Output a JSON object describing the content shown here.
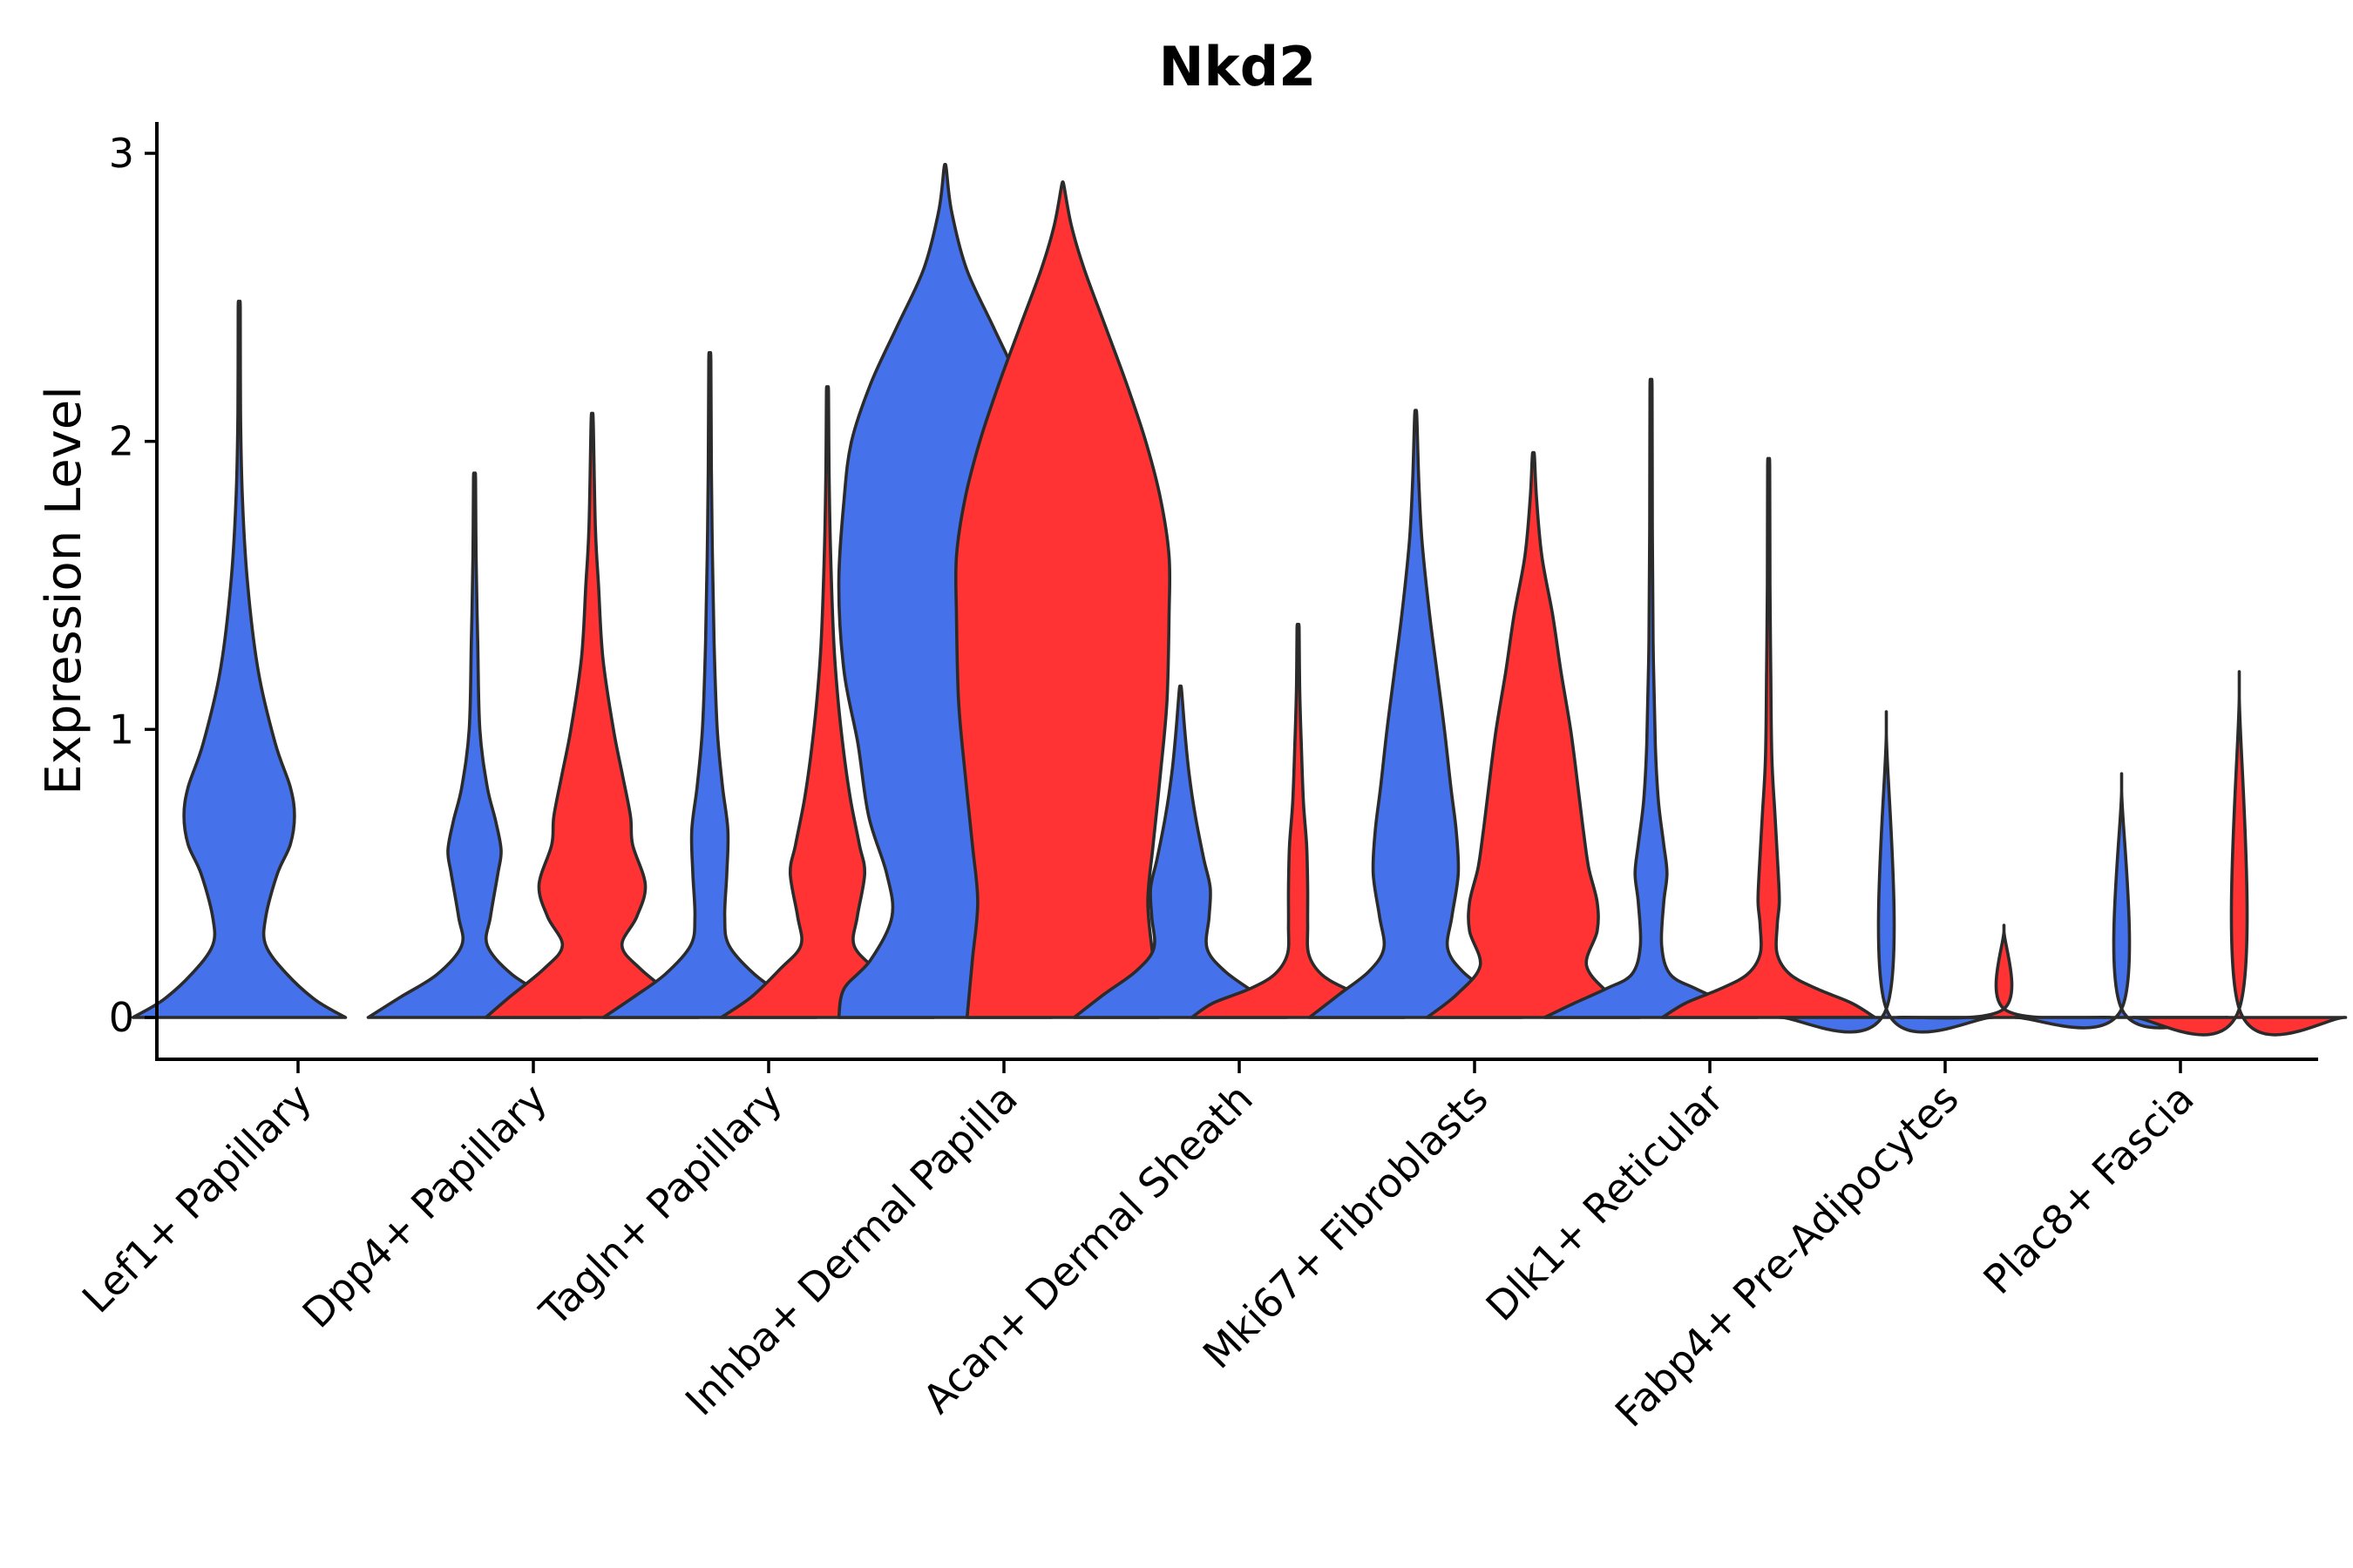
{
  "chart_data": {
    "type": "violin",
    "title": "Nkd2",
    "xlabel": "",
    "ylabel": "Expression Level",
    "ylim": [
      -0.15,
      3.1
    ],
    "yticks": [
      0,
      1,
      2,
      3
    ],
    "categories": [
      "Lef1+ Papillary",
      "Dpp4+ Papillary",
      "Tagln+ Papillary",
      "Inhba+ Dermal Papilla",
      "Acan+ Dermal Sheath",
      "Mki67+ Fibroblasts",
      "Dlk1+ Reticular",
      "Fabp4+ Pre-Adipocytes",
      "Plac8+ Fascia"
    ],
    "colors": {
      "blue": "#4571EA",
      "red": "#FF3333"
    },
    "violins": [
      {
        "category": "Lef1+ Papillary",
        "side": "left",
        "color": "blue",
        "max": 2.46,
        "profile": [
          [
            0,
            1.0
          ],
          [
            0.06,
            0.72
          ],
          [
            0.15,
            0.45
          ],
          [
            0.25,
            0.25
          ],
          [
            0.35,
            0.25
          ],
          [
            0.5,
            0.36
          ],
          [
            0.6,
            0.48
          ],
          [
            0.7,
            0.52
          ],
          [
            0.8,
            0.48
          ],
          [
            0.95,
            0.34
          ],
          [
            1.2,
            0.18
          ],
          [
            1.5,
            0.08
          ],
          [
            1.8,
            0.03
          ],
          [
            2.1,
            0.012
          ],
          [
            2.46,
            0.01
          ]
        ]
      },
      {
        "category": "Dpp4+ Papillary",
        "side": "left",
        "color": "blue",
        "max": 1.87,
        "profile": [
          [
            0,
            1.0
          ],
          [
            0.07,
            0.7
          ],
          [
            0.15,
            0.35
          ],
          [
            0.25,
            0.12
          ],
          [
            0.35,
            0.15
          ],
          [
            0.5,
            0.22
          ],
          [
            0.58,
            0.25
          ],
          [
            0.68,
            0.2
          ],
          [
            0.8,
            0.12
          ],
          [
            1.0,
            0.05
          ],
          [
            1.3,
            0.03
          ],
          [
            1.6,
            0.015
          ],
          [
            1.87,
            0.01
          ]
        ]
      },
      {
        "category": "Dpp4+ Papillary",
        "side": "right",
        "color": "red",
        "max": 2.07,
        "profile": [
          [
            0,
            1.0
          ],
          [
            0.07,
            0.78
          ],
          [
            0.17,
            0.45
          ],
          [
            0.25,
            0.28
          ],
          [
            0.35,
            0.42
          ],
          [
            0.46,
            0.5
          ],
          [
            0.6,
            0.38
          ],
          [
            0.7,
            0.36
          ],
          [
            0.85,
            0.28
          ],
          [
            1.0,
            0.2
          ],
          [
            1.25,
            0.1
          ],
          [
            1.5,
            0.06
          ],
          [
            1.7,
            0.03
          ],
          [
            2.07,
            0.01
          ]
        ]
      },
      {
        "category": "Tagln+ Papillary",
        "side": "left",
        "color": "blue",
        "max": 2.28,
        "profile": [
          [
            0,
            1.0
          ],
          [
            0.07,
            0.72
          ],
          [
            0.15,
            0.42
          ],
          [
            0.25,
            0.18
          ],
          [
            0.35,
            0.14
          ],
          [
            0.5,
            0.16
          ],
          [
            0.65,
            0.17
          ],
          [
            0.8,
            0.12
          ],
          [
            1.0,
            0.07
          ],
          [
            1.3,
            0.04
          ],
          [
            1.6,
            0.025
          ],
          [
            1.9,
            0.015
          ],
          [
            2.28,
            0.01
          ]
        ]
      },
      {
        "category": "Tagln+ Papillary",
        "side": "right",
        "color": "red",
        "max": 2.17,
        "profile": [
          [
            0,
            1.0
          ],
          [
            0.07,
            0.72
          ],
          [
            0.17,
            0.44
          ],
          [
            0.25,
            0.25
          ],
          [
            0.35,
            0.28
          ],
          [
            0.5,
            0.35
          ],
          [
            0.6,
            0.3
          ],
          [
            0.75,
            0.22
          ],
          [
            0.9,
            0.16
          ],
          [
            1.1,
            0.1
          ],
          [
            1.3,
            0.06
          ],
          [
            1.6,
            0.03
          ],
          [
            1.9,
            0.015
          ],
          [
            2.17,
            0.01
          ]
        ]
      },
      {
        "category": "Inhba+ Dermal Papilla",
        "side": "left",
        "color": "blue",
        "max": 2.95,
        "profile": [
          [
            0,
            1.0
          ],
          [
            0.1,
            0.95
          ],
          [
            0.2,
            0.7
          ],
          [
            0.35,
            0.5
          ],
          [
            0.5,
            0.55
          ],
          [
            0.7,
            0.72
          ],
          [
            0.95,
            0.82
          ],
          [
            1.2,
            0.95
          ],
          [
            1.5,
            1.0
          ],
          [
            1.8,
            0.95
          ],
          [
            2.0,
            0.88
          ],
          [
            2.2,
            0.7
          ],
          [
            2.4,
            0.45
          ],
          [
            2.6,
            0.2
          ],
          [
            2.8,
            0.06
          ],
          [
            2.95,
            0.01
          ]
        ]
      },
      {
        "category": "Inhba+ Dermal Papilla",
        "side": "right",
        "color": "red",
        "max": 2.89,
        "profile": [
          [
            0,
            0.9
          ],
          [
            0.2,
            0.85
          ],
          [
            0.4,
            0.8
          ],
          [
            0.6,
            0.85
          ],
          [
            0.85,
            0.92
          ],
          [
            1.1,
            0.98
          ],
          [
            1.4,
            1.0
          ],
          [
            1.6,
            1.0
          ],
          [
            1.8,
            0.92
          ],
          [
            2.0,
            0.78
          ],
          [
            2.2,
            0.6
          ],
          [
            2.4,
            0.4
          ],
          [
            2.6,
            0.2
          ],
          [
            2.75,
            0.08
          ],
          [
            2.89,
            0.01
          ]
        ]
      },
      {
        "category": "Acan+ Dermal Sheath",
        "side": "left",
        "color": "blue",
        "max": 1.14,
        "profile": [
          [
            0,
            1.0
          ],
          [
            0.08,
            0.72
          ],
          [
            0.16,
            0.42
          ],
          [
            0.24,
            0.25
          ],
          [
            0.35,
            0.27
          ],
          [
            0.45,
            0.28
          ],
          [
            0.55,
            0.22
          ],
          [
            0.7,
            0.14
          ],
          [
            0.85,
            0.08
          ],
          [
            1.0,
            0.04
          ],
          [
            1.14,
            0.01
          ]
        ]
      },
      {
        "category": "Acan+ Dermal Sheath",
        "side": "right",
        "color": "red",
        "max": 1.35,
        "profile": [
          [
            0,
            1.0
          ],
          [
            0.05,
            0.8
          ],
          [
            0.1,
            0.45
          ],
          [
            0.15,
            0.22
          ],
          [
            0.22,
            0.1
          ],
          [
            0.32,
            0.09
          ],
          [
            0.45,
            0.09
          ],
          [
            0.6,
            0.08
          ],
          [
            0.75,
            0.05
          ],
          [
            0.95,
            0.03
          ],
          [
            1.15,
            0.015
          ],
          [
            1.35,
            0.01
          ]
        ]
      },
      {
        "category": "Mki67+ Fibroblasts",
        "side": "left",
        "color": "blue",
        "max": 2.09,
        "profile": [
          [
            0,
            1.0
          ],
          [
            0.08,
            0.72
          ],
          [
            0.16,
            0.44
          ],
          [
            0.24,
            0.3
          ],
          [
            0.35,
            0.34
          ],
          [
            0.5,
            0.4
          ],
          [
            0.65,
            0.38
          ],
          [
            0.8,
            0.33
          ],
          [
            1.0,
            0.27
          ],
          [
            1.2,
            0.2
          ],
          [
            1.4,
            0.13
          ],
          [
            1.65,
            0.06
          ],
          [
            1.85,
            0.03
          ],
          [
            2.09,
            0.01
          ]
        ]
      },
      {
        "category": "Mki67+ Fibroblasts",
        "side": "right",
        "color": "red",
        "max": 1.95,
        "profile": [
          [
            0,
            1.0
          ],
          [
            0.08,
            0.72
          ],
          [
            0.18,
            0.5
          ],
          [
            0.3,
            0.6
          ],
          [
            0.4,
            0.6
          ],
          [
            0.52,
            0.52
          ],
          [
            0.65,
            0.47
          ],
          [
            0.8,
            0.42
          ],
          [
            1.0,
            0.35
          ],
          [
            1.2,
            0.26
          ],
          [
            1.4,
            0.18
          ],
          [
            1.6,
            0.08
          ],
          [
            1.8,
            0.03
          ],
          [
            1.95,
            0.01
          ]
        ]
      },
      {
        "category": "Dlk1+ Reticular",
        "side": "left",
        "color": "blue",
        "max": 2.18,
        "profile": [
          [
            0,
            1.0
          ],
          [
            0.05,
            0.72
          ],
          [
            0.1,
            0.42
          ],
          [
            0.15,
            0.18
          ],
          [
            0.25,
            0.1
          ],
          [
            0.4,
            0.12
          ],
          [
            0.5,
            0.15
          ],
          [
            0.6,
            0.12
          ],
          [
            0.75,
            0.07
          ],
          [
            0.95,
            0.04
          ],
          [
            1.3,
            0.02
          ],
          [
            1.7,
            0.012
          ],
          [
            2.18,
            0.01
          ]
        ]
      },
      {
        "category": "Dlk1+ Reticular",
        "side": "right",
        "color": "red",
        "max": 1.91,
        "profile": [
          [
            0,
            1.0
          ],
          [
            0.05,
            0.78
          ],
          [
            0.1,
            0.45
          ],
          [
            0.15,
            0.2
          ],
          [
            0.22,
            0.08
          ],
          [
            0.32,
            0.08
          ],
          [
            0.4,
            0.1
          ],
          [
            0.5,
            0.09
          ],
          [
            0.7,
            0.06
          ],
          [
            0.9,
            0.03
          ],
          [
            1.2,
            0.02
          ],
          [
            1.5,
            0.012
          ],
          [
            1.91,
            0.01
          ]
        ]
      },
      {
        "category": "Fabp4+ Pre-Adipocytes",
        "side": "left",
        "color": "blue",
        "max": 0.99,
        "profile": [
          [
            0,
            1.0
          ],
          [
            0.03,
            0.0
          ],
          [
            0.99,
            0.0
          ]
        ]
      },
      {
        "category": "Fabp4+ Pre-Adipocytes",
        "side": "right",
        "color": "red",
        "max": 0.3,
        "profile": [
          [
            0,
            1.0
          ],
          [
            0.03,
            0.0
          ],
          [
            0.3,
            0.0
          ]
        ]
      },
      {
        "category": "Plac8+ Fascia",
        "side": "left",
        "color": "blue",
        "max": 0.79,
        "profile": [
          [
            0,
            1.0
          ],
          [
            0.03,
            0.0
          ],
          [
            0.79,
            0.0
          ]
        ]
      },
      {
        "category": "Plac8+ Fascia",
        "side": "right",
        "color": "red",
        "max": 1.12,
        "profile": [
          [
            0,
            1.0
          ],
          [
            0.03,
            0.0
          ],
          [
            1.12,
            0.0
          ]
        ]
      }
    ]
  }
}
